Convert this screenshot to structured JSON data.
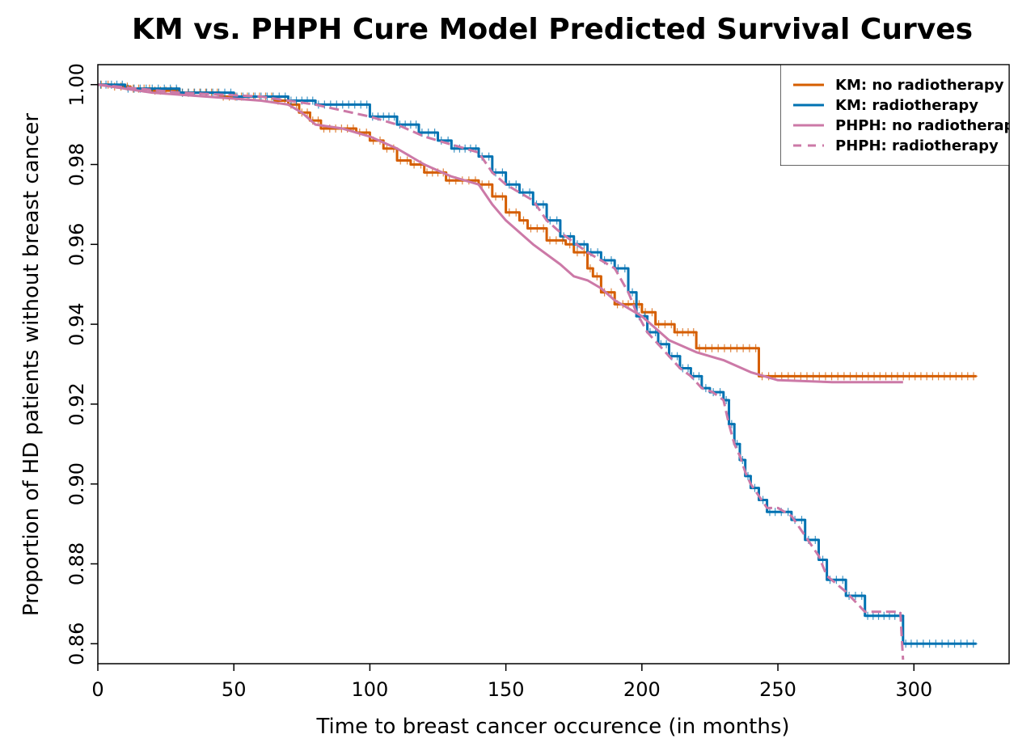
{
  "chart_data": {
    "type": "line",
    "title": "KM vs. PHPH Cure Model Predicted Survival Curves",
    "xlabel": "Time to breast cancer occurence (in months)",
    "ylabel": "Proportion of HD patients without breast cancer",
    "xlim": [
      0,
      335
    ],
    "ylim": [
      0.855,
      1.005
    ],
    "xticks": [
      0,
      50,
      100,
      150,
      200,
      250,
      300
    ],
    "yticks": [
      0.86,
      0.88,
      0.9,
      0.92,
      0.94,
      0.96,
      0.98,
      1.0
    ],
    "ytick_labels": [
      "0.86",
      "0.88",
      "0.90",
      "0.92",
      "0.94",
      "0.96",
      "0.98",
      "1.00"
    ],
    "grid": false,
    "legend_position": "top-right",
    "series": [
      {
        "name": "KM: no radiotherapy",
        "color": "#D55E00",
        "style": "step",
        "censored": true,
        "x": [
          0,
          5,
          12,
          20,
          30,
          45,
          65,
          70,
          74,
          78,
          82,
          95,
          100,
          105,
          110,
          115,
          120,
          128,
          140,
          145,
          150,
          155,
          158,
          165,
          172,
          175,
          180,
          182,
          185,
          190,
          200,
          205,
          212,
          220,
          243,
          255,
          280,
          323
        ],
        "y": [
          1.0,
          0.9995,
          0.999,
          0.9985,
          0.998,
          0.997,
          0.996,
          0.995,
          0.993,
          0.991,
          0.989,
          0.988,
          0.986,
          0.984,
          0.981,
          0.98,
          0.978,
          0.976,
          0.975,
          0.972,
          0.968,
          0.966,
          0.964,
          0.961,
          0.96,
          0.958,
          0.954,
          0.952,
          0.948,
          0.945,
          0.943,
          0.94,
          0.938,
          0.934,
          0.927,
          0.927,
          0.927,
          0.927
        ]
      },
      {
        "name": "KM: radiotherapy",
        "color": "#0072B2",
        "style": "step",
        "censored": true,
        "x": [
          0,
          10,
          30,
          50,
          70,
          80,
          100,
          110,
          118,
          125,
          130,
          140,
          145,
          150,
          155,
          160,
          165,
          170,
          175,
          180,
          185,
          190,
          195,
          198,
          202,
          206,
          210,
          214,
          218,
          222,
          225,
          230,
          232,
          234,
          236,
          238,
          240,
          243,
          246,
          250,
          255,
          260,
          265,
          268,
          275,
          282,
          290,
          296,
          300,
          323
        ],
        "y": [
          1.0,
          0.999,
          0.998,
          0.997,
          0.996,
          0.995,
          0.992,
          0.99,
          0.988,
          0.986,
          0.984,
          0.982,
          0.978,
          0.975,
          0.973,
          0.97,
          0.966,
          0.962,
          0.96,
          0.958,
          0.956,
          0.954,
          0.948,
          0.942,
          0.938,
          0.935,
          0.932,
          0.929,
          0.927,
          0.924,
          0.923,
          0.921,
          0.915,
          0.91,
          0.906,
          0.902,
          0.899,
          0.896,
          0.893,
          0.893,
          0.891,
          0.886,
          0.881,
          0.876,
          0.872,
          0.867,
          0.867,
          0.86,
          0.86,
          0.86
        ]
      },
      {
        "name": "PHPH: no radiotherapy",
        "color": "#CC79A7",
        "style": "solid",
        "censored": false,
        "x": [
          0,
          20,
          40,
          60,
          70,
          75,
          80,
          90,
          100,
          110,
          120,
          130,
          140,
          145,
          150,
          160,
          170,
          175,
          180,
          185,
          190,
          195,
          200,
          205,
          210,
          220,
          230,
          240,
          250,
          270,
          296
        ],
        "y": [
          1.0,
          0.998,
          0.997,
          0.996,
          0.995,
          0.993,
          0.99,
          0.989,
          0.987,
          0.984,
          0.98,
          0.977,
          0.975,
          0.97,
          0.966,
          0.96,
          0.955,
          0.952,
          0.951,
          0.949,
          0.946,
          0.944,
          0.942,
          0.939,
          0.936,
          0.933,
          0.931,
          0.928,
          0.926,
          0.9255,
          0.9255
        ]
      },
      {
        "name": "PHPH: radiotherapy",
        "color": "#CC79A7",
        "style": "dashed",
        "censored": false,
        "x": [
          0,
          30,
          60,
          80,
          100,
          110,
          120,
          130,
          140,
          145,
          150,
          160,
          165,
          170,
          180,
          190,
          195,
          198,
          202,
          206,
          210,
          214,
          218,
          222,
          226,
          230,
          232,
          234,
          236,
          238,
          240,
          243,
          246,
          250,
          255,
          260,
          265,
          268,
          275,
          282,
          290,
          295,
          296
        ],
        "y": [
          1.0,
          0.998,
          0.997,
          0.995,
          0.992,
          0.99,
          0.987,
          0.985,
          0.983,
          0.978,
          0.975,
          0.971,
          0.966,
          0.963,
          0.958,
          0.954,
          0.948,
          0.943,
          0.938,
          0.935,
          0.932,
          0.929,
          0.927,
          0.924,
          0.923,
          0.921,
          0.915,
          0.91,
          0.907,
          0.903,
          0.9,
          0.897,
          0.894,
          0.894,
          0.892,
          0.887,
          0.882,
          0.877,
          0.873,
          0.868,
          0.868,
          0.868,
          0.856
        ]
      }
    ]
  }
}
